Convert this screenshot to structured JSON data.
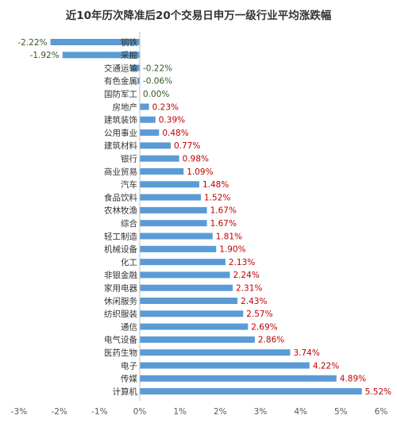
{
  "chart_data": {
    "type": "bar",
    "orientation": "horizontal",
    "title": "近10年历次降准后20个交易日申万一级行业平均涨跌幅",
    "xlabel": "",
    "ylabel": "",
    "xlim": [
      -3,
      6
    ],
    "xticks": [
      -3,
      -2,
      -1,
      0,
      1,
      2,
      3,
      4,
      5,
      6
    ],
    "xtick_labels": [
      "-3%",
      "-2%",
      "-1%",
      "0%",
      "1%",
      "2%",
      "3%",
      "4%",
      "5%",
      "6%"
    ],
    "grid": false,
    "legend": "none",
    "categories": [
      "钢铁",
      "采掘",
      "交通运输",
      "有色金属",
      "国防军工",
      "房地产",
      "建筑装饰",
      "公用事业",
      "建筑材料",
      "银行",
      "商业贸易",
      "汽车",
      "食品饮料",
      "农林牧渔",
      "综合",
      "轻工制造",
      "机械设备",
      "化工",
      "非银金融",
      "家用电器",
      "休闲服务",
      "纺织服装",
      "通信",
      "电气设备",
      "医药生物",
      "电子",
      "传媒",
      "计算机"
    ],
    "values": [
      -2.22,
      -1.92,
      -0.22,
      -0.06,
      0.0,
      0.23,
      0.39,
      0.48,
      0.77,
      0.98,
      1.09,
      1.48,
      1.52,
      1.67,
      1.67,
      1.81,
      1.9,
      2.13,
      2.24,
      2.31,
      2.43,
      2.57,
      2.69,
      2.86,
      3.74,
      4.22,
      4.89,
      5.52
    ],
    "value_labels": [
      "-2.22%",
      "-1.92%",
      "-0.22%",
      "-0.06%",
      "0.00%",
      "0.23%",
      "0.39%",
      "0.48%",
      "0.77%",
      "0.98%",
      "1.09%",
      "1.48%",
      "1.52%",
      "1.67%",
      "1.67%",
      "1.81%",
      "1.90%",
      "2.13%",
      "2.24%",
      "2.31%",
      "2.43%",
      "2.57%",
      "2.69%",
      "2.86%",
      "3.74%",
      "4.22%",
      "4.89%",
      "5.52%"
    ],
    "colors": {
      "bar": "#5B9BD5",
      "positive_label": "#C00000",
      "negative_label": "#375623",
      "axis": "#BFBFBF"
    }
  }
}
